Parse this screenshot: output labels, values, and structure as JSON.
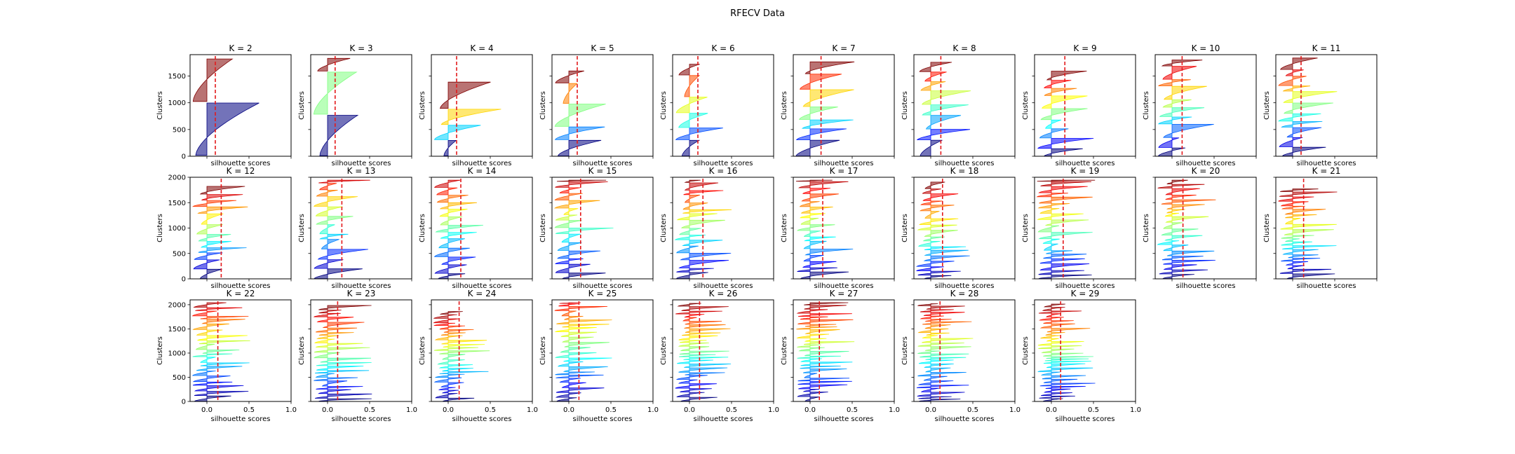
{
  "figure": {
    "title": "RFECV Data"
  },
  "chart_data": {
    "type": "area",
    "title": "RFECV Data",
    "xlabel": "silhouette scores",
    "ylabel": "Clusters",
    "xlim": [
      -0.2,
      1.0
    ],
    "xticks": [
      "0.0",
      "0.5",
      "1.0"
    ],
    "xtick_values": [
      0.0,
      0.5,
      1.0
    ],
    "reference_line": {
      "style": "dashed",
      "color": "#e31a1c"
    },
    "colormap": "jet",
    "colors": {
      "background": "#ffffff",
      "mean_line": "#e31a1c",
      "axes": "#000000"
    },
    "panels": [
      {
        "title": "K = 2",
        "k": 2,
        "mean_score": 0.1,
        "ylim": [
          0,
          1900
        ],
        "yticks": [
          0,
          500,
          1000,
          1500
        ]
      },
      {
        "title": "K = 3",
        "k": 3,
        "mean_score": 0.09,
        "ylim": [
          0,
          1900
        ],
        "yticks": []
      },
      {
        "title": "K = 4",
        "k": 4,
        "mean_score": 0.1,
        "ylim": [
          0,
          1900
        ],
        "yticks": []
      },
      {
        "title": "K = 5",
        "k": 5,
        "mean_score": 0.1,
        "ylim": [
          0,
          1900
        ],
        "yticks": []
      },
      {
        "title": "K = 6",
        "k": 6,
        "mean_score": 0.1,
        "ylim": [
          0,
          1900
        ],
        "yticks": []
      },
      {
        "title": "K = 7",
        "k": 7,
        "mean_score": 0.13,
        "ylim": [
          0,
          1900
        ],
        "yticks": []
      },
      {
        "title": "K = 8",
        "k": 8,
        "mean_score": 0.12,
        "ylim": [
          0,
          1900
        ],
        "yticks": []
      },
      {
        "title": "K = 9",
        "k": 9,
        "mean_score": 0.16,
        "ylim": [
          0,
          1900
        ],
        "yticks": []
      },
      {
        "title": "K = 10",
        "k": 10,
        "mean_score": 0.12,
        "ylim": [
          0,
          1900
        ],
        "yticks": []
      },
      {
        "title": "K = 11",
        "k": 11,
        "mean_score": 0.1,
        "ylim": [
          0,
          1900
        ],
        "yticks": []
      },
      {
        "title": "K = 12",
        "k": 12,
        "mean_score": 0.17,
        "ylim": [
          0,
          2000
        ],
        "yticks": [
          0,
          500,
          1000,
          1500,
          2000
        ]
      },
      {
        "title": "K = 13",
        "k": 13,
        "mean_score": 0.17,
        "ylim": [
          0,
          2000
        ],
        "yticks": []
      },
      {
        "title": "K = 14",
        "k": 14,
        "mean_score": 0.15,
        "ylim": [
          0,
          2000
        ],
        "yticks": []
      },
      {
        "title": "K = 15",
        "k": 15,
        "mean_score": 0.14,
        "ylim": [
          0,
          2000
        ],
        "yticks": []
      },
      {
        "title": "K = 16",
        "k": 16,
        "mean_score": 0.16,
        "ylim": [
          0,
          2000
        ],
        "yticks": []
      },
      {
        "title": "K = 17",
        "k": 17,
        "mean_score": 0.15,
        "ylim": [
          0,
          2000
        ],
        "yticks": []
      },
      {
        "title": "K = 18",
        "k": 18,
        "mean_score": 0.14,
        "ylim": [
          0,
          2000
        ],
        "yticks": []
      },
      {
        "title": "K = 19",
        "k": 19,
        "mean_score": 0.14,
        "ylim": [
          0,
          2000
        ],
        "yticks": []
      },
      {
        "title": "K = 20",
        "k": 20,
        "mean_score": 0.13,
        "ylim": [
          0,
          2000
        ],
        "yticks": []
      },
      {
        "title": "K = 21",
        "k": 21,
        "mean_score": 0.13,
        "ylim": [
          0,
          2000
        ],
        "yticks": []
      },
      {
        "title": "K = 22",
        "k": 22,
        "mean_score": 0.13,
        "ylim": [
          0,
          2100
        ],
        "yticks": [
          0,
          500,
          1000,
          1500,
          2000
        ],
        "xticks_shown": true
      },
      {
        "title": "K = 23",
        "k": 23,
        "mean_score": 0.12,
        "ylim": [
          0,
          2100
        ],
        "yticks": [],
        "xticks_shown": true
      },
      {
        "title": "K = 24",
        "k": 24,
        "mean_score": 0.13,
        "ylim": [
          0,
          2100
        ],
        "yticks": [],
        "xticks_shown": true
      },
      {
        "title": "K = 25",
        "k": 25,
        "mean_score": 0.12,
        "ylim": [
          0,
          2100
        ],
        "yticks": [],
        "xticks_shown": true
      },
      {
        "title": "K = 26",
        "k": 26,
        "mean_score": 0.12,
        "ylim": [
          0,
          2100
        ],
        "yticks": [],
        "xticks_shown": true
      },
      {
        "title": "K = 27",
        "k": 27,
        "mean_score": 0.11,
        "ylim": [
          0,
          2100
        ],
        "yticks": [],
        "xticks_shown": true
      },
      {
        "title": "K = 28",
        "k": 28,
        "mean_score": 0.11,
        "ylim": [
          0,
          2100
        ],
        "yticks": [],
        "xticks_shown": true
      },
      {
        "title": "K = 29",
        "k": 29,
        "mean_score": 0.11,
        "ylim": [
          0,
          2100
        ],
        "yticks": [],
        "xticks_shown": true
      }
    ]
  }
}
